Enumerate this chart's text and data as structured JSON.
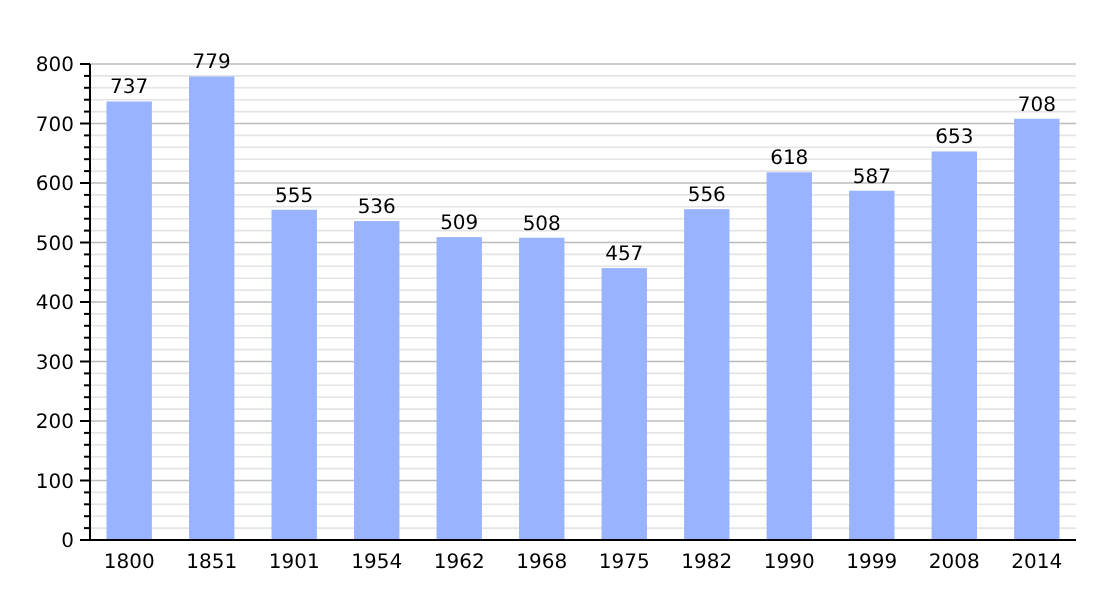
{
  "chart_data": {
    "type": "bar",
    "categories": [
      "1800",
      "1851",
      "1901",
      "1954",
      "1962",
      "1968",
      "1975",
      "1982",
      "1990",
      "1999",
      "2008",
      "2014"
    ],
    "values": [
      737,
      779,
      555,
      536,
      509,
      508,
      457,
      556,
      618,
      587,
      653,
      708
    ],
    "color": "#99b3ff",
    "data_labels": true,
    "grid": "y",
    "ylim": [
      0,
      800
    ],
    "yticks": [
      0,
      {
        "value": 20,
        "label": null
      },
      {
        "value": 40,
        "label": null
      },
      {
        "value": 60,
        "label": null
      },
      {
        "value": 80,
        "label": null
      },
      100,
      {
        "value": 120,
        "label": null
      },
      {
        "value": 140,
        "label": null
      },
      {
        "value": 160,
        "label": null
      },
      {
        "value": 180,
        "label": null
      },
      200,
      {
        "value": 220,
        "label": null
      },
      {
        "value": 240,
        "label": null
      },
      {
        "value": 260,
        "label": null
      },
      {
        "value": 280,
        "label": null
      },
      300,
      {
        "value": 320,
        "label": null
      },
      {
        "value": 340,
        "label": null
      },
      {
        "value": 360,
        "label": null
      },
      {
        "value": 380,
        "label": null
      },
      400,
      {
        "value": 420,
        "label": null
      },
      {
        "value": 440,
        "label": null
      },
      {
        "value": 460,
        "label": null
      },
      {
        "value": 480,
        "label": null
      },
      500,
      {
        "value": 520,
        "label": null
      },
      {
        "value": 540,
        "label": null
      },
      {
        "value": 560,
        "label": null
      },
      {
        "value": 580,
        "label": null
      },
      600,
      {
        "value": 620,
        "label": null
      },
      {
        "value": 640,
        "label": null
      },
      {
        "value": 660,
        "label": null
      },
      {
        "value": 680,
        "label": null
      },
      700,
      {
        "value": 720,
        "label": null
      },
      {
        "value": 740,
        "label": null
      },
      {
        "value": 760,
        "label": null
      },
      {
        "value": 780,
        "label": null
      },
      800
    ]
  }
}
